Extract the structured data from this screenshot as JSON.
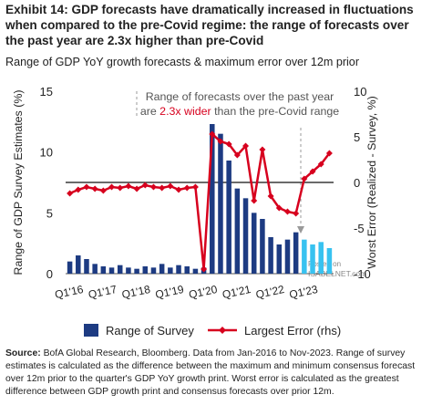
{
  "chart_data": {
    "type": "bar-line",
    "title": "Exhibit 14: GDP forecasts have dramatically increased in fluctuations when compared  to the pre-Covid regime: the range of forecasts over the past year are 2.3x higher than pre-Covid",
    "subtitle": "Range of GDP YoY growth forecasts & maximum  error over 12m prior",
    "ylabel": "Range of GDP Survey Estimates (%)",
    "y2label": "Worst Error (Realized - Survey, %)",
    "categories": [
      "Q1'16",
      null,
      null,
      null,
      "Q1'17",
      null,
      null,
      null,
      "Q1'18",
      null,
      null,
      null,
      "Q1'19",
      null,
      null,
      null,
      "Q1'20",
      null,
      null,
      null,
      "Q1'21",
      null,
      null,
      null,
      "Q1'22",
      null,
      null,
      null,
      "Q1'23",
      null,
      null,
      null
    ],
    "series": [
      {
        "name": "Range of Survey",
        "type": "bar",
        "color": "#1d3b82",
        "bar_colors": [
          "#1d3b82",
          "#1d3b82",
          "#1d3b82",
          "#1d3b82",
          "#1d3b82",
          "#1d3b82",
          "#1d3b82",
          "#1d3b82",
          "#1d3b82",
          "#1d3b82",
          "#1d3b82",
          "#1d3b82",
          "#1d3b82",
          "#1d3b82",
          "#1d3b82",
          "#1d3b82",
          "#1d3b82",
          "#1d3b82",
          "#1d3b82",
          "#1d3b82",
          "#1d3b82",
          "#1d3b82",
          "#1d3b82",
          "#1d3b82",
          "#1d3b82",
          "#1d3b82",
          "#1d3b82",
          "#1d3b82",
          "#38c2f0",
          "#38c2f0",
          "#38c2f0",
          "#38c2f0"
        ],
        "values": [
          1.0,
          1.5,
          1.2,
          0.8,
          0.6,
          0.5,
          0.7,
          0.5,
          0.4,
          0.6,
          0.5,
          0.8,
          0.5,
          0.7,
          0.6,
          0.4,
          0.5,
          12.3,
          11.5,
          9.3,
          7.0,
          6.2,
          5.0,
          4.5,
          3.0,
          2.4,
          2.8,
          3.4,
          2.8,
          2.4,
          2.6,
          2.1
        ]
      },
      {
        "name": "Largest Error (rhs)",
        "type": "line",
        "axis": "y2",
        "color": "#d7001e",
        "values": [
          -1.2,
          -0.8,
          -0.5,
          -0.7,
          -0.9,
          -0.5,
          -0.6,
          -0.4,
          -0.7,
          -0.3,
          -0.5,
          -0.6,
          -0.4,
          -0.8,
          -0.6,
          -0.5,
          -9.5,
          5.3,
          4.5,
          4.2,
          3.0,
          4.0,
          -2.0,
          3.6,
          -1.5,
          -2.8,
          -3.2,
          -3.4,
          0.4,
          1.2,
          2.0,
          3.2
        ]
      }
    ],
    "ylim": [
      0,
      15
    ],
    "yticks": [
      0,
      5,
      10,
      15
    ],
    "y2lim": [
      -10,
      10
    ],
    "y2ticks": [
      -10,
      -5,
      0,
      5,
      10
    ],
    "y2_zero_line": true,
    "annotation": {
      "line1": "Range of forecasts over the past year",
      "pre": "are ",
      "highlight": "2.3x wider",
      "post": " than the pre-Covid range",
      "highlight_color": "#d7001e"
    },
    "watermark": [
      "Posted on",
      "ISABELNET.com"
    ],
    "source": {
      "label": "Source:",
      "text": " BofA Global Research, Bloomberg. Data from Jan-2016 to Nov-2023. Range of survey estimates is calculated as the difference between the maximum and minimum consensus forecast over 12m prior to the quarter's GDP YoY growth print. Worst error is calculated as the greatest difference between GDP growth print and consensus forecasts over prior 12m."
    }
  }
}
